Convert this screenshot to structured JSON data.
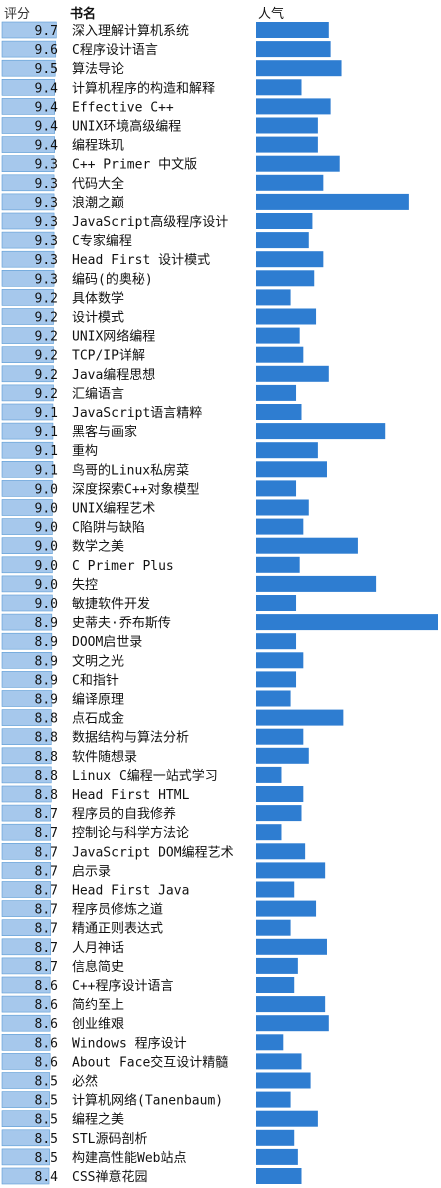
{
  "header": {
    "score": "评分",
    "title": "书名",
    "popularity": "人气"
  },
  "colors": {
    "score_bar_fill": "#a6c8ec",
    "score_bar_edge": "#5b9bd5",
    "pop_bar": "#2e7dd1"
  },
  "chart_data": {
    "type": "table",
    "columns": [
      "评分",
      "书名",
      "人气"
    ],
    "score_range": [
      0,
      10
    ],
    "rows": [
      {
        "score": "9.7",
        "title": "深入理解计算机系统",
        "popularity": 0.4
      },
      {
        "score": "9.6",
        "title": "C程序设计语言",
        "popularity": 0.41
      },
      {
        "score": "9.5",
        "title": "算法导论",
        "popularity": 0.47
      },
      {
        "score": "9.4",
        "title": "计算机程序的构造和解释",
        "popularity": 0.25
      },
      {
        "score": "9.4",
        "title": "Effective C++",
        "popularity": 0.41
      },
      {
        "score": "9.4",
        "title": "UNIX环境高级编程",
        "popularity": 0.34
      },
      {
        "score": "9.4",
        "title": "编程珠玑",
        "popularity": 0.34
      },
      {
        "score": "9.3",
        "title": "C++ Primer 中文版",
        "popularity": 0.46
      },
      {
        "score": "9.3",
        "title": "代码大全",
        "popularity": 0.37
      },
      {
        "score": "9.3",
        "title": "浪潮之巅",
        "popularity": 0.84
      },
      {
        "score": "9.3",
        "title": "JavaScript高级程序设计",
        "popularity": 0.31
      },
      {
        "score": "9.3",
        "title": "C专家编程",
        "popularity": 0.29
      },
      {
        "score": "9.3",
        "title": "Head First 设计模式",
        "popularity": 0.37
      },
      {
        "score": "9.3",
        "title": "编码(的奥秘)",
        "popularity": 0.32
      },
      {
        "score": "9.2",
        "title": "具体数学",
        "popularity": 0.19
      },
      {
        "score": "9.2",
        "title": "设计模式",
        "popularity": 0.33
      },
      {
        "score": "9.2",
        "title": "UNIX网络编程",
        "popularity": 0.24
      },
      {
        "score": "9.2",
        "title": "TCP/IP详解",
        "popularity": 0.26
      },
      {
        "score": "9.2",
        "title": "Java编程思想",
        "popularity": 0.4
      },
      {
        "score": "9.2",
        "title": "汇编语言",
        "popularity": 0.22
      },
      {
        "score": "9.1",
        "title": "JavaScript语言精粹",
        "popularity": 0.25
      },
      {
        "score": "9.1",
        "title": "黑客与画家",
        "popularity": 0.71
      },
      {
        "score": "9.1",
        "title": "重构",
        "popularity": 0.34
      },
      {
        "score": "9.1",
        "title": "鸟哥的Linux私房菜",
        "popularity": 0.39
      },
      {
        "score": "9.0",
        "title": "深度探索C++对象模型",
        "popularity": 0.22
      },
      {
        "score": "9.0",
        "title": "UNIX编程艺术",
        "popularity": 0.29
      },
      {
        "score": "9.0",
        "title": "C陷阱与缺陷",
        "popularity": 0.26
      },
      {
        "score": "9.0",
        "title": "数学之美",
        "popularity": 0.56
      },
      {
        "score": "9.0",
        "title": "C Primer Plus",
        "popularity": 0.24
      },
      {
        "score": "9.0",
        "title": "失控",
        "popularity": 0.66
      },
      {
        "score": "9.0",
        "title": "敏捷软件开发",
        "popularity": 0.22
      },
      {
        "score": "8.9",
        "title": "史蒂夫·乔布斯传",
        "popularity": 1.0
      },
      {
        "score": "8.9",
        "title": "DOOM启世录",
        "popularity": 0.22
      },
      {
        "score": "8.9",
        "title": "文明之光",
        "popularity": 0.26
      },
      {
        "score": "8.9",
        "title": "C和指针",
        "popularity": 0.22
      },
      {
        "score": "8.9",
        "title": "编译原理",
        "popularity": 0.19
      },
      {
        "score": "8.8",
        "title": "点石成金",
        "popularity": 0.48
      },
      {
        "score": "8.8",
        "title": "数据结构与算法分析",
        "popularity": 0.26
      },
      {
        "score": "8.8",
        "title": "软件随想录",
        "popularity": 0.29
      },
      {
        "score": "8.8",
        "title": "Linux C编程一站式学习",
        "popularity": 0.14
      },
      {
        "score": "8.8",
        "title": "Head First HTML",
        "popularity": 0.26
      },
      {
        "score": "8.7",
        "title": "程序员的自我修养",
        "popularity": 0.25
      },
      {
        "score": "8.7",
        "title": "控制论与科学方法论",
        "popularity": 0.14
      },
      {
        "score": "8.7",
        "title": "JavaScript DOM编程艺术",
        "popularity": 0.27
      },
      {
        "score": "8.7",
        "title": "启示录",
        "popularity": 0.38
      },
      {
        "score": "8.7",
        "title": "Head First Java",
        "popularity": 0.21
      },
      {
        "score": "8.7",
        "title": "程序员修炼之道",
        "popularity": 0.33
      },
      {
        "score": "8.7",
        "title": "精通正则表达式",
        "popularity": 0.19
      },
      {
        "score": "8.7",
        "title": "人月神话",
        "popularity": 0.39
      },
      {
        "score": "8.7",
        "title": "信息简史",
        "popularity": 0.23
      },
      {
        "score": "8.6",
        "title": "C++程序设计语言",
        "popularity": 0.21
      },
      {
        "score": "8.6",
        "title": "简约至上",
        "popularity": 0.38
      },
      {
        "score": "8.6",
        "title": "创业维艰",
        "popularity": 0.4
      },
      {
        "score": "8.6",
        "title": "Windows 程序设计",
        "popularity": 0.15
      },
      {
        "score": "8.6",
        "title": "About Face交互设计精髓",
        "popularity": 0.25
      },
      {
        "score": "8.5",
        "title": "必然",
        "popularity": 0.3
      },
      {
        "score": "8.5",
        "title": "计算机网络(Tanenbaum)",
        "popularity": 0.19
      },
      {
        "score": "8.5",
        "title": "编程之美",
        "popularity": 0.34
      },
      {
        "score": "8.5",
        "title": "STL源码剖析",
        "popularity": 0.21
      },
      {
        "score": "8.5",
        "title": "构建高性能Web站点",
        "popularity": 0.23
      },
      {
        "score": "8.4",
        "title": "CSS禅意花园",
        "popularity": 0.25
      }
    ]
  }
}
